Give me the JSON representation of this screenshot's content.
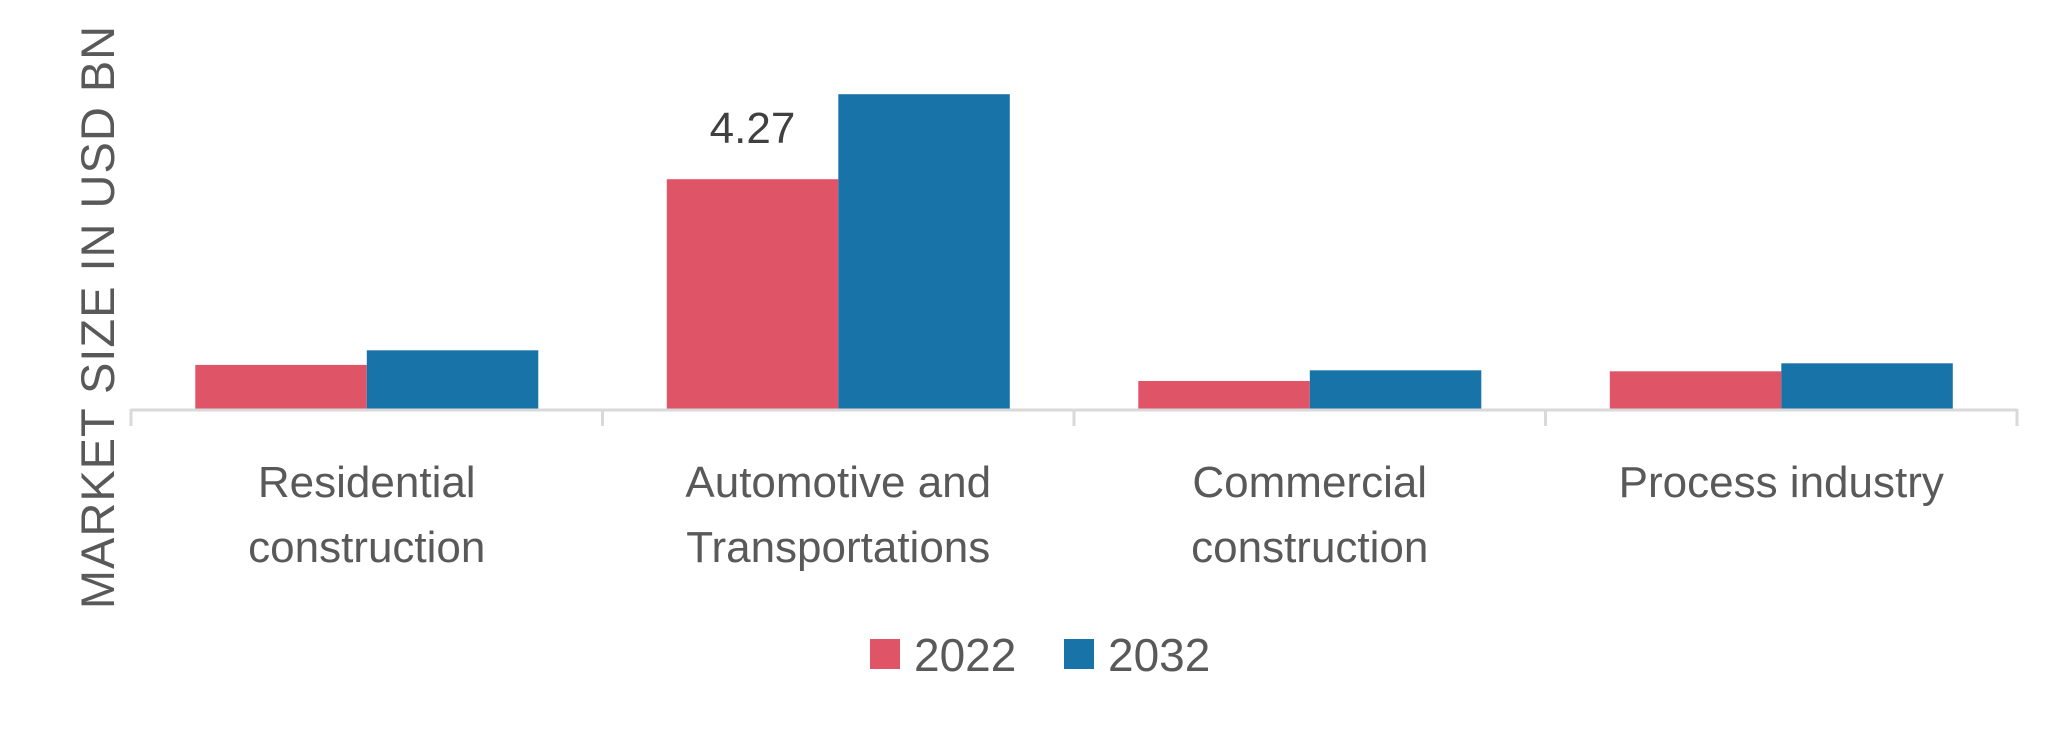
{
  "chart_data": {
    "type": "bar",
    "title": "",
    "xlabel": "",
    "ylabel": "MARKET SIZE IN USD BN",
    "categories": [
      [
        "Residential",
        "construction"
      ],
      [
        "Automotive and",
        "Transportations"
      ],
      [
        "Commercial",
        "construction"
      ],
      [
        "Process industry"
      ]
    ],
    "series": [
      {
        "name": "2022",
        "color": "#E05468",
        "values": [
          0.82,
          4.27,
          0.52,
          0.7
        ]
      },
      {
        "name": "2032",
        "color": "#1874A8",
        "values": [
          1.09,
          5.85,
          0.72,
          0.85
        ]
      }
    ],
    "data_labels": [
      {
        "series": 0,
        "category": 1,
        "text": "4.27"
      }
    ],
    "ylim": [
      0,
      7.6
    ],
    "grid": false,
    "y_axis_visible": false,
    "legend": {
      "position": "bottom-center",
      "entries": [
        "2022",
        "2032"
      ]
    },
    "axis_color": "#D9D9D9",
    "text_color": "#595959"
  }
}
